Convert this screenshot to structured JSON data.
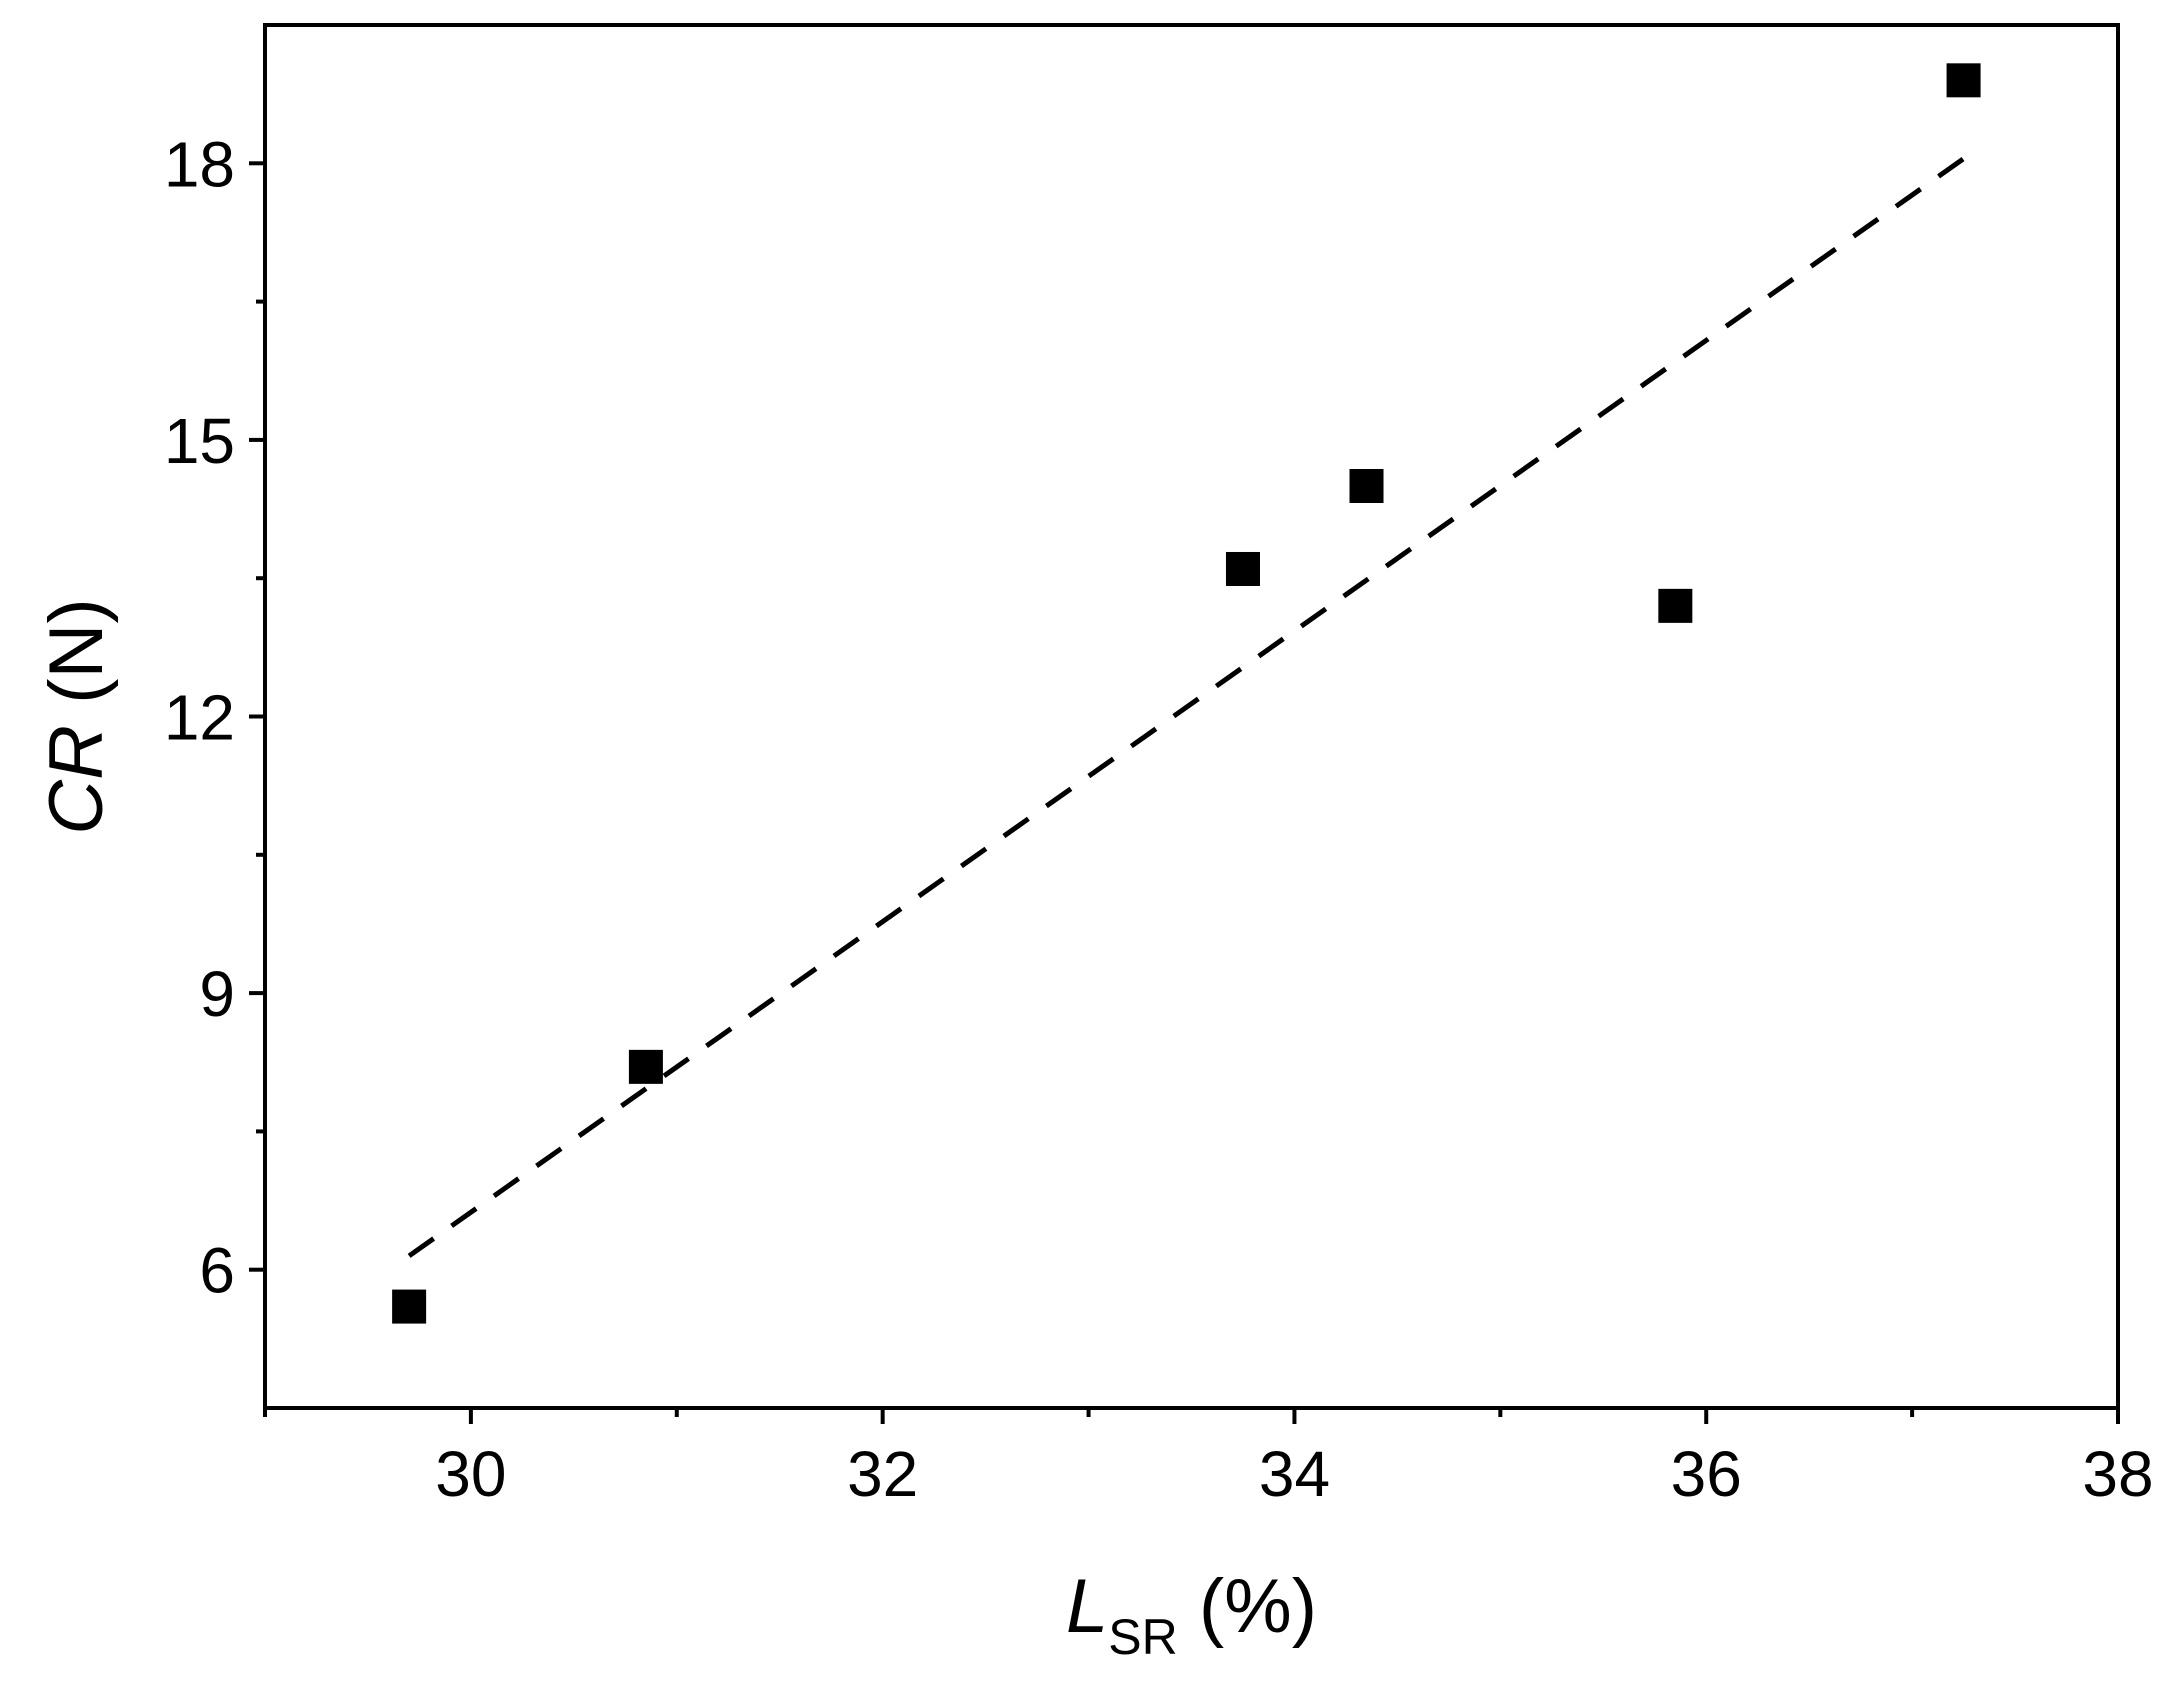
{
  "chart_data": {
    "type": "scatter",
    "xlabel": {
      "main": "L",
      "sub": "SR",
      "unit": "(%)"
    },
    "ylabel": {
      "main": "CR",
      "unit": "(N)"
    },
    "xlim": [
      29,
      38
    ],
    "ylim": [
      4.5,
      19.5
    ],
    "x_ticks": [
      30,
      32,
      34,
      36,
      38
    ],
    "x_minor_ticks": [
      29,
      31,
      33,
      35,
      37
    ],
    "y_ticks": [
      6,
      9,
      12,
      15,
      18
    ],
    "y_minor_ticks": [
      7.5,
      10.5,
      13.5,
      16.5
    ],
    "grid": false,
    "series": [
      {
        "marker": "square",
        "color": "#000000",
        "points": [
          {
            "x": 29.7,
            "y": 5.6
          },
          {
            "x": 30.85,
            "y": 8.2
          },
          {
            "x": 33.75,
            "y": 13.6
          },
          {
            "x": 34.35,
            "y": 14.5
          },
          {
            "x": 35.85,
            "y": 13.2
          },
          {
            "x": 37.25,
            "y": 18.9
          }
        ]
      }
    ],
    "fit_line": {
      "style": "dashed",
      "color": "#000000",
      "from": {
        "x": 29.7,
        "y": 6.15
      },
      "to": {
        "x": 37.25,
        "y": 18.05
      }
    }
  }
}
